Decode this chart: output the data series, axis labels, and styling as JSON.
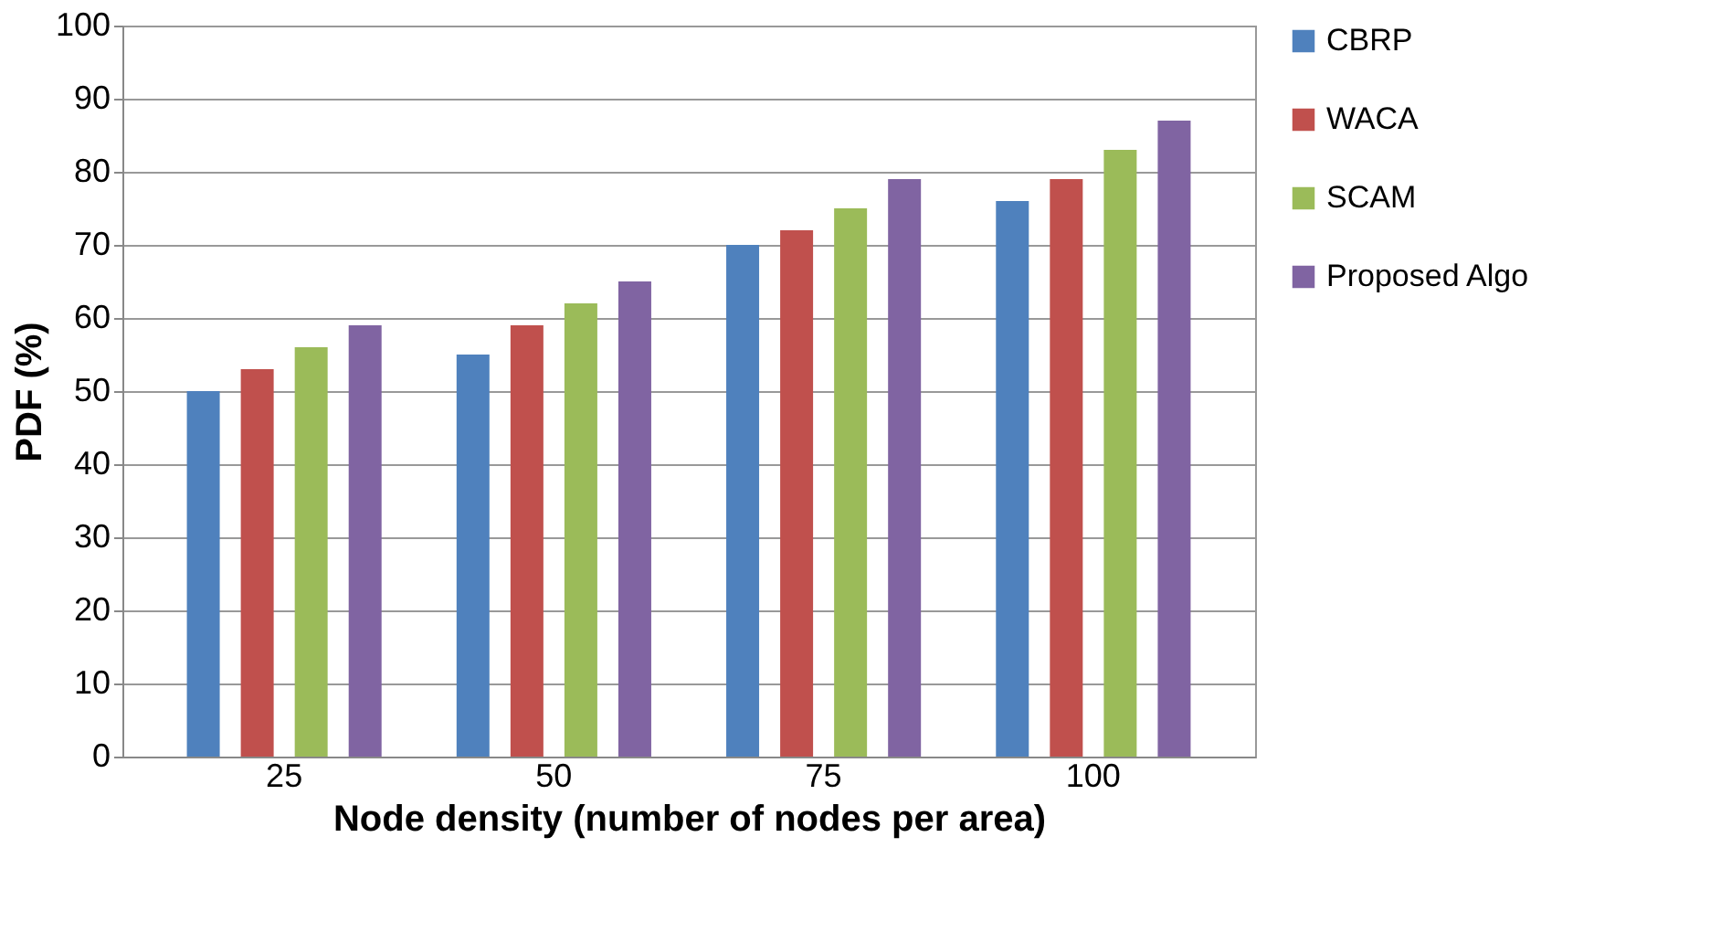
{
  "chart_data": {
    "type": "bar",
    "xlabel": "Node density (number of nodes per area)",
    "ylabel": "PDF (%)",
    "categories": [
      "25",
      "50",
      "75",
      "100"
    ],
    "series": [
      {
        "name": "CBRP",
        "color": "#4f81bd",
        "values": [
          50,
          55,
          70,
          76
        ]
      },
      {
        "name": "WACA",
        "color": "#c0504d",
        "values": [
          53,
          59,
          72,
          79
        ]
      },
      {
        "name": "SCAM",
        "color": "#9bbb59",
        "values": [
          56,
          62,
          75,
          83
        ]
      },
      {
        "name": "Proposed Algo",
        "color": "#8064a2",
        "values": [
          59,
          65,
          79,
          87
        ]
      }
    ],
    "ylim": [
      0,
      100
    ],
    "yticks": [
      0,
      10,
      20,
      30,
      40,
      50,
      60,
      70,
      80,
      90,
      100
    ],
    "grid": "y",
    "legend": "right"
  }
}
